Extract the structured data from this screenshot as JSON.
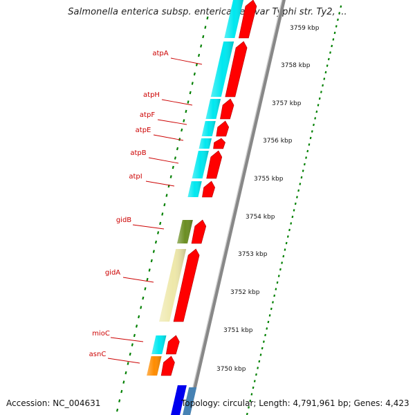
{
  "title": "Salmonella enterica subsp. enterica serovar Typhi str. Ty2, ...",
  "footer": {
    "accession": "Accession: NC_004631",
    "topology": "Topology: circular; Length: 4,791,961 bp; Genes: 4,423"
  },
  "scale_labels": [
    "3759 kbp",
    "3758 kbp",
    "3757 kbp",
    "3756 kbp",
    "3755 kbp",
    "3754 kbp",
    "3753 kbp",
    "3752 kbp",
    "3751 kbp",
    "3750 kbp"
  ],
  "genes": [
    {
      "name": "atpA",
      "color": "#00e8f0"
    },
    {
      "name": "atpH",
      "color": "#00e8f0"
    },
    {
      "name": "atpF",
      "color": "#00e8f0"
    },
    {
      "name": "atpE",
      "color": "#00e8f0"
    },
    {
      "name": "atpB",
      "color": "#00e8f0"
    },
    {
      "name": "atpI",
      "color": "#00e8f0"
    },
    {
      "name": "gidB",
      "color": "#6b8e23"
    },
    {
      "name": "gidA",
      "color": "#eee8aa"
    },
    {
      "name": "mioC",
      "color": "#00e8f0"
    },
    {
      "name": "asnC",
      "color": "#ff8c00"
    }
  ],
  "colors": {
    "label_red": "#cc0000",
    "strand_red": "#ff0000",
    "scale_green": "#008000",
    "backbone_gray": "#888888",
    "blue_feature": "#0000ee",
    "steelblue_feature": "#4682b4"
  }
}
